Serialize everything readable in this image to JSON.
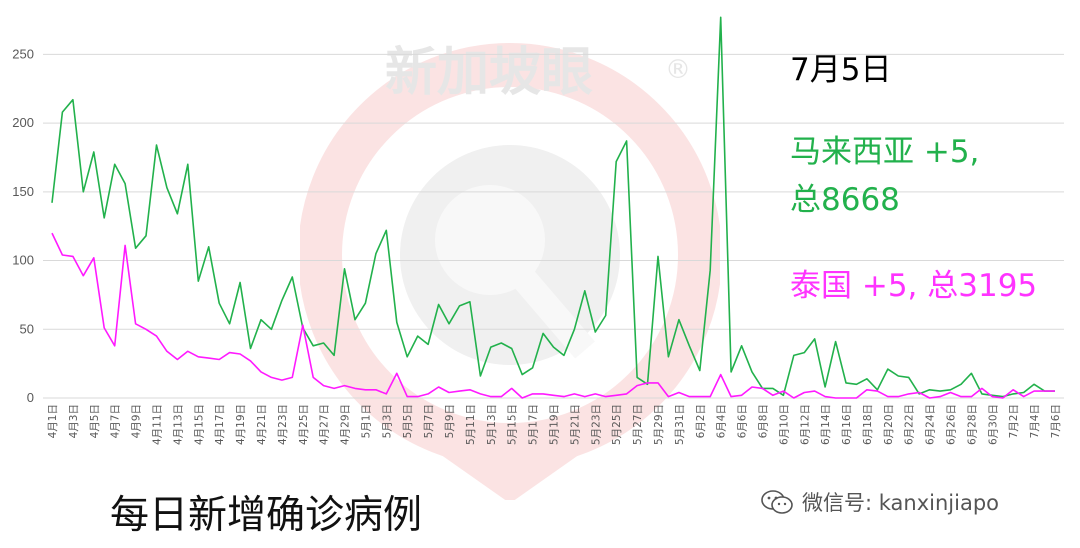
{
  "header": {
    "date_title": "7月5日"
  },
  "labels": {
    "malaysia": [
      "马来西亚 +5,",
      "总8668"
    ],
    "thailand": "泰国 +5, 总3195"
  },
  "caption": "每日新增确诊病例",
  "watermark": {
    "brand": "新加坡眼",
    "registered_mark": "®",
    "wechat_text": "微信号: kanxinjiapo",
    "icon": "wechat-icon"
  },
  "colors": {
    "malaysia": "#22b14c",
    "thailand": "#ff1aff",
    "grid": "#d9d9d9"
  },
  "chart_data": {
    "type": "line",
    "title": "",
    "xlabel": "",
    "ylabel": "",
    "ylim": [
      0,
      275
    ],
    "yticks": [
      0,
      50,
      100,
      150,
      200,
      250
    ],
    "grid": true,
    "x": [
      "4月1日",
      "4月2日",
      "4月3日",
      "4月4日",
      "4月5日",
      "4月6日",
      "4月7日",
      "4月8日",
      "4月9日",
      "4月10日",
      "4月11日",
      "4月12日",
      "4月13日",
      "4月14日",
      "4月15日",
      "4月16日",
      "4月17日",
      "4月18日",
      "4月19日",
      "4月20日",
      "4月21日",
      "4月22日",
      "4月23日",
      "4月24日",
      "4月25日",
      "4月26日",
      "4月27日",
      "4月28日",
      "4月29日",
      "4月30日",
      "5月1日",
      "5月2日",
      "5月3日",
      "5月4日",
      "5月5日",
      "5月6日",
      "5月7日",
      "5月8日",
      "5月9日",
      "5月10日",
      "5月11日",
      "5月12日",
      "5月13日",
      "5月14日",
      "5月15日",
      "5月16日",
      "5月17日",
      "5月18日",
      "5月19日",
      "5月20日",
      "5月21日",
      "5月22日",
      "5月23日",
      "5月24日",
      "5月25日",
      "5月26日",
      "5月27日",
      "5月28日",
      "5月29日",
      "5月30日",
      "5月31日",
      "6月1日",
      "6月2日",
      "6月3日",
      "6月4日",
      "6月5日",
      "6月6日",
      "6月7日",
      "6月8日",
      "6月9日",
      "6月10日",
      "6月11日",
      "6月12日",
      "6月13日",
      "6月14日",
      "6月15日",
      "6月16日",
      "6月17日",
      "6月18日",
      "6月19日",
      "6月20日",
      "6月21日",
      "6月22日",
      "6月23日",
      "6月24日",
      "6月25日",
      "6月26日",
      "6月27日",
      "6月28日",
      "6月29日",
      "6月30日",
      "7月1日",
      "7月2日",
      "7月3日",
      "7月4日",
      "7月5日",
      "7月6日"
    ],
    "tick_labels": [
      "4月1日",
      "4月3日",
      "4月5日",
      "4月7日",
      "4月9日",
      "4月11日",
      "4月13日",
      "4月15日",
      "4月17日",
      "4月19日",
      "4月21日",
      "4月23日",
      "4月25日",
      "4月27日",
      "4月29日",
      "5月1日",
      "5月3日",
      "5月5日",
      "5月7日",
      "5月9日",
      "5月11日",
      "5月13日",
      "5月15日",
      "5月17日",
      "5月19日",
      "5月21日",
      "5月23日",
      "5月25日",
      "5月27日",
      "5月29日",
      "5月31日",
      "6月2日",
      "6月4日",
      "6月6日",
      "6月8日",
      "6月10日",
      "6月12日",
      "6月14日",
      "6月16日",
      "6月18日",
      "6月20日",
      "6月22日",
      "6月24日",
      "6月26日",
      "6月28日",
      "6月30日",
      "7月2日",
      "7月4日",
      "7月6日"
    ],
    "series": [
      {
        "key": "malaysia",
        "values": [
          142,
          208,
          217,
          150,
          179,
          131,
          170,
          156,
          109,
          118,
          184,
          153,
          134,
          170,
          85,
          110,
          69,
          54,
          84,
          36,
          57,
          50,
          71,
          88,
          51,
          38,
          40,
          31,
          94,
          57,
          69,
          105,
          122,
          55,
          30,
          45,
          39,
          68,
          54,
          67,
          70,
          16,
          37,
          40,
          36,
          17,
          22,
          47,
          37,
          31,
          50,
          78,
          48,
          60,
          172,
          187,
          15,
          10,
          103,
          30,
          57,
          38,
          20,
          93,
          277,
          19,
          38,
          19,
          7,
          7,
          2,
          31,
          33,
          43,
          8,
          41,
          11,
          10,
          14,
          6,
          21,
          16,
          15,
          3,
          6,
          5,
          6,
          10,
          18,
          3,
          2,
          1,
          3,
          4,
          10,
          5,
          5
        ]
      },
      {
        "key": "thailand",
        "values": [
          120,
          104,
          103,
          89,
          102,
          51,
          38,
          111,
          54,
          50,
          45,
          34,
          28,
          34,
          30,
          29,
          28,
          33,
          32,
          27,
          19,
          15,
          13,
          15,
          53,
          15,
          9,
          7,
          9,
          7,
          6,
          6,
          3,
          18,
          1,
          1,
          3,
          8,
          4,
          5,
          6,
          3,
          1,
          1,
          7,
          0,
          3,
          3,
          2,
          1,
          3,
          1,
          3,
          1,
          2,
          3,
          9,
          11,
          11,
          1,
          4,
          1,
          1,
          1,
          17,
          1,
          2,
          8,
          7,
          2,
          5,
          0,
          4,
          5,
          1,
          0,
          0,
          0,
          6,
          5,
          1,
          1,
          3,
          4,
          0,
          1,
          4,
          1,
          1,
          7,
          1,
          0,
          6,
          1,
          5,
          5,
          5
        ]
      }
    ]
  }
}
